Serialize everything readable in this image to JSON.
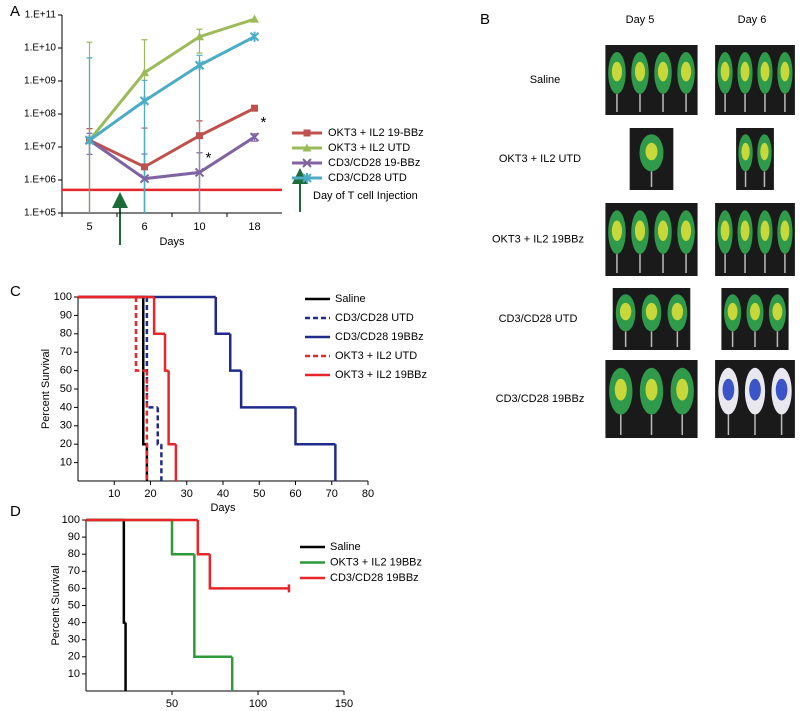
{
  "panel_labels": [
    "A",
    "B",
    "C",
    "D"
  ],
  "image_panel": {
    "columns": [
      "Day 5",
      "Day 6"
    ],
    "rows": [
      "Saline",
      "OKT3 + IL2 UTD",
      "OKT3 + IL2 19BBz",
      "CD3/CD28 UTD",
      "CD3/CD28 19BBz"
    ]
  },
  "chart_data": [
    {
      "type": "line",
      "x_label": "Days",
      "categories": [
        "5",
        "6",
        "10",
        "18"
      ],
      "log_scale": true,
      "ylim": [
        100000,
        100000000000
      ],
      "yticks": [
        {
          "value": 100000,
          "label": "1.E+05"
        },
        {
          "value": 1000000,
          "label": "1.E+06"
        },
        {
          "value": 10000000,
          "label": "1.E+07"
        },
        {
          "value": 100000000,
          "label": "1.E+08"
        },
        {
          "value": 1000000000,
          "label": "1.E+09"
        },
        {
          "value": 10000000000,
          "label": "1.E+10"
        },
        {
          "value": 100000000000,
          "label": "1.E+11"
        }
      ],
      "series": [
        {
          "name": "OKT3 + IL2 19-BBz",
          "color": "#c0504d",
          "marker": "square",
          "values": [
            16000000,
            2500000,
            22000000,
            150000000
          ],
          "errors": [
            20000000,
            35000000,
            40000000,
            0
          ]
        },
        {
          "name": "OKT3 + IL2 UTD",
          "color": "#9bbb59",
          "marker": "triangle",
          "values": [
            16000000,
            1800000000,
            22000000000,
            75000000000
          ],
          "errors": [
            15000000000,
            16000000000,
            15000000000,
            0
          ]
        },
        {
          "name": "CD3/CD28 19-BBz",
          "color": "#8064a2",
          "marker": "cross",
          "values": [
            16000000,
            1100000,
            1700000,
            20000000
          ],
          "errors": [
            10000000,
            5000000,
            5000000,
            5000000
          ]
        },
        {
          "name": "CD3/CD28 UTD",
          "color": "#4bacc6",
          "marker": "star",
          "values": [
            16000000,
            250000000,
            3000000000,
            22000000000
          ],
          "errors": [
            5000000000,
            800000000,
            3000000000,
            0
          ]
        }
      ],
      "reference_line": {
        "value": 500000,
        "color": "#e8262a"
      },
      "annotations": [
        "*",
        "*",
        "Day of T cell Injection"
      ]
    },
    {
      "type": "survival",
      "x_label": "Days",
      "y_label": "Percent Survival",
      "xlim": [
        0,
        80
      ],
      "xticks": [
        10,
        20,
        30,
        40,
        50,
        60,
        70,
        80
      ],
      "ylim": [
        0,
        100
      ],
      "yticks": [
        10,
        20,
        30,
        40,
        50,
        60,
        70,
        80,
        90,
        100
      ],
      "series": [
        {
          "name": "Saline",
          "color": "#000000",
          "line_style": "solid",
          "x": [
            0,
            18,
            19
          ],
          "values": [
            100,
            20,
            0
          ]
        },
        {
          "name": "CD3/CD28 UTD",
          "color": "#1f2a8c",
          "line_style": "dashed",
          "x": [
            0,
            19,
            22,
            23
          ],
          "values": [
            100,
            40,
            20,
            0
          ]
        },
        {
          "name": "CD3/CD28 19BBz",
          "color": "#1f2a8c",
          "line_style": "solid",
          "x": [
            0,
            38,
            42,
            45,
            60,
            71
          ],
          "values": [
            100,
            80,
            60,
            40,
            20,
            0
          ]
        },
        {
          "name": "OKT3 + IL2 UTD",
          "color": "#e8262a",
          "line_style": "dashed",
          "x": [
            0,
            16,
            19
          ],
          "values": [
            100,
            60,
            0
          ]
        },
        {
          "name": "OKT3 + IL2 19BBz",
          "color": "#e8262a",
          "line_style": "solid",
          "x": [
            0,
            21,
            24,
            25,
            27
          ],
          "values": [
            100,
            80,
            60,
            20,
            0
          ]
        }
      ]
    },
    {
      "type": "survival",
      "y_label": "Percent Survival",
      "xlim": [
        0,
        150
      ],
      "xticks": [
        50,
        100,
        150
      ],
      "ylim": [
        0,
        100
      ],
      "yticks": [
        10,
        20,
        30,
        40,
        50,
        60,
        70,
        80,
        90,
        100
      ],
      "series": [
        {
          "name": "Saline",
          "color": "#000000",
          "line_style": "solid",
          "x": [
            0,
            22,
            23
          ],
          "values": [
            100,
            40,
            0
          ]
        },
        {
          "name": "OKT3 + IL2 19BBz",
          "color": "#2e9a3a",
          "line_style": "solid",
          "x": [
            0,
            50,
            63,
            85
          ],
          "values": [
            100,
            80,
            20,
            0
          ]
        },
        {
          "name": "CD3/CD28 19BBz",
          "color": "#e8262a",
          "line_style": "solid",
          "x": [
            0,
            65,
            72,
            118
          ],
          "values": [
            100,
            80,
            60,
            60
          ]
        }
      ]
    }
  ]
}
